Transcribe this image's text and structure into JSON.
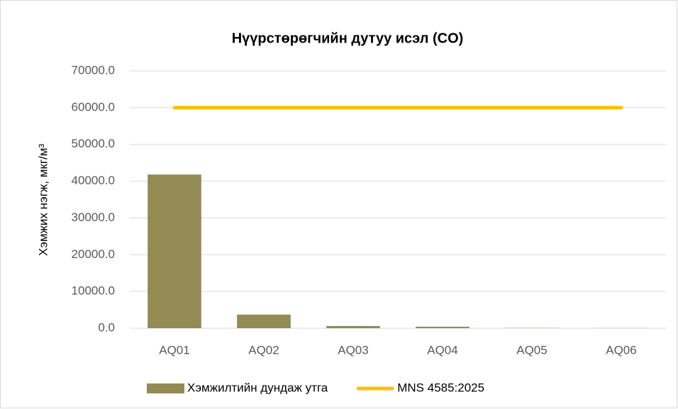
{
  "chart_data": {
    "type": "bar",
    "title": "Нүүрстөрөгчийн дутуу исэл (CO)",
    "y_label": "Хэмжих нэгж, мкг/м³",
    "categories": [
      "AQ01",
      "AQ02",
      "AQ03",
      "AQ04",
      "AQ05",
      "AQ06"
    ],
    "series": [
      {
        "name": "Хэмжилтийн дундаж утга",
        "type": "bar",
        "color": "#948a54",
        "values": [
          41800,
          3700,
          600,
          400,
          50,
          30
        ]
      },
      {
        "name": "MNS 4585:2025",
        "type": "line",
        "color": "#ffc000",
        "values": [
          60000,
          60000,
          60000,
          60000,
          60000,
          60000
        ]
      }
    ],
    "ylim": [
      0,
      70000
    ],
    "yticks": [
      {
        "value": 0,
        "label": "0.0"
      },
      {
        "value": 10000,
        "label": "10000.0"
      },
      {
        "value": 20000,
        "label": "20000.0"
      },
      {
        "value": 30000,
        "label": "30000.0"
      },
      {
        "value": 40000,
        "label": "40000.0"
      },
      {
        "value": 50000,
        "label": "50000.0"
      },
      {
        "value": 60000,
        "label": "60000.0"
      },
      {
        "value": 70000,
        "label": "70000.0"
      }
    ],
    "grid": true,
    "legend": "bottom"
  }
}
